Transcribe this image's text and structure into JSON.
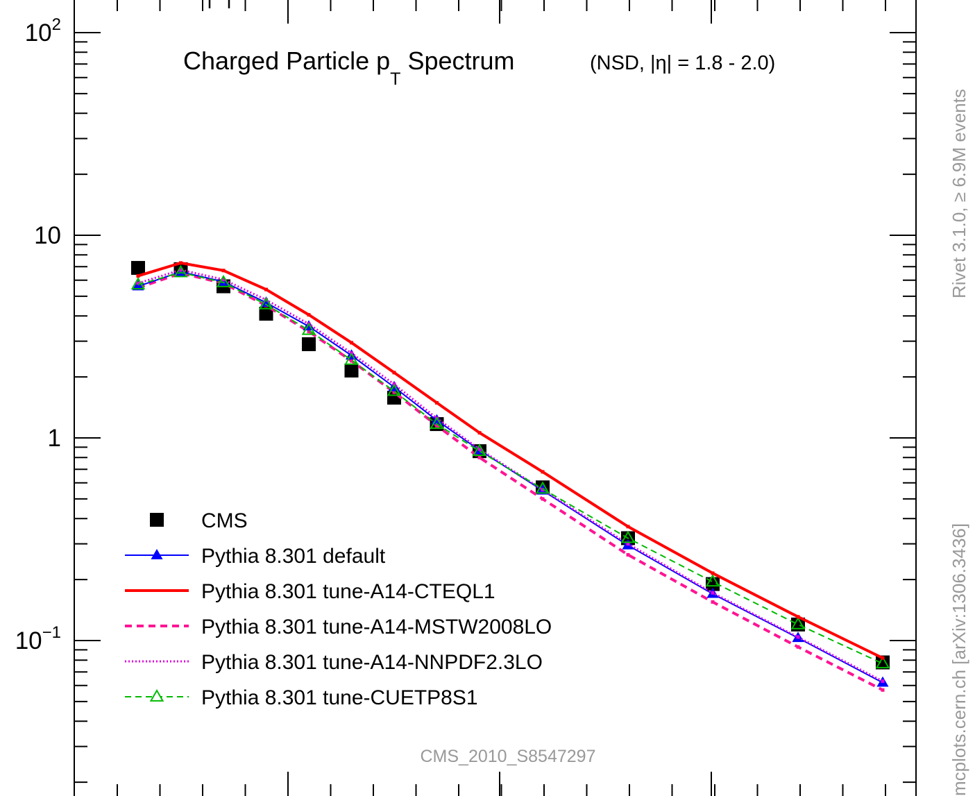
{
  "chart_data": {
    "type": "line",
    "title": "Charged Particle p",
    "title_sub": "T",
    "title_tail": " Spectrum",
    "title_note": "(NSD, |η| = 1.8 - 2.0)",
    "watermark": "CMS_2010_S8547297",
    "side_label_top": "Rivet 3.1.0, ≥ 6.9M events",
    "side_label_bottom": "mcplots.cern.ch [arXiv:1306.3436]",
    "y_scale": "log",
    "ylim": [
      0.02,
      120
    ],
    "y_ticks": [
      {
        "base": "10",
        "exp": "2"
      },
      {
        "base": "10",
        "exp": ""
      },
      {
        "base": "1",
        "exp": ""
      },
      {
        "base": "10",
        "exp": "−1"
      }
    ],
    "x": [
      0.2,
      0.3,
      0.4,
      0.5,
      0.6,
      0.7,
      0.8,
      0.9,
      1.0,
      1.15,
      1.4,
      1.6,
      1.8,
      2.05
    ],
    "legend_position": "bottom-left",
    "series": [
      {
        "name": "CMS",
        "key": "cms",
        "color": "#000000",
        "style": "marker-square",
        "values": [
          6.9,
          6.8,
          5.6,
          4.1,
          2.9,
          2.15,
          1.58,
          1.17,
          0.86,
          0.57,
          0.32,
          0.19,
          0.12,
          0.078
        ]
      },
      {
        "name": "Pythia 8.301 default",
        "key": "default",
        "color": "#0000ff",
        "style": "solid-triangle",
        "values": [
          5.6,
          6.6,
          5.9,
          4.65,
          3.55,
          2.55,
          1.78,
          1.22,
          0.87,
          0.55,
          0.295,
          0.17,
          0.103,
          0.062
        ]
      },
      {
        "name": "Pythia 8.301 tune-A14-CTEQL1",
        "key": "cteq",
        "color": "#ff0000",
        "style": "solid-thick",
        "values": [
          6.3,
          7.3,
          6.7,
          5.4,
          4.05,
          2.95,
          2.1,
          1.49,
          1.06,
          0.68,
          0.365,
          0.215,
          0.131,
          0.082
        ]
      },
      {
        "name": "Pythia 8.301 tune-A14-MSTW2008LO",
        "key": "mstw",
        "color": "#ff1493",
        "style": "dashed-thick",
        "values": [
          5.5,
          6.5,
          5.8,
          4.5,
          3.35,
          2.4,
          1.68,
          1.15,
          0.8,
          0.5,
          0.265,
          0.155,
          0.093,
          0.057
        ]
      },
      {
        "name": "Pythia 8.301 tune-A14-NNPDF2.3LO",
        "key": "nnpdf",
        "color": "#e000e0",
        "style": "dotted",
        "values": [
          5.8,
          6.75,
          6.05,
          4.8,
          3.65,
          2.62,
          1.84,
          1.25,
          0.88,
          0.555,
          0.3,
          0.172,
          0.104,
          0.063
        ]
      },
      {
        "name": "Pythia 8.301 tune-CUETP8S1",
        "key": "cuetp",
        "color": "#00bb00",
        "style": "dashed-open-triangle",
        "values": [
          5.7,
          6.55,
          5.85,
          4.55,
          3.4,
          2.42,
          1.7,
          1.17,
          0.86,
          0.56,
          0.32,
          0.195,
          0.12,
          0.077
        ]
      }
    ]
  }
}
